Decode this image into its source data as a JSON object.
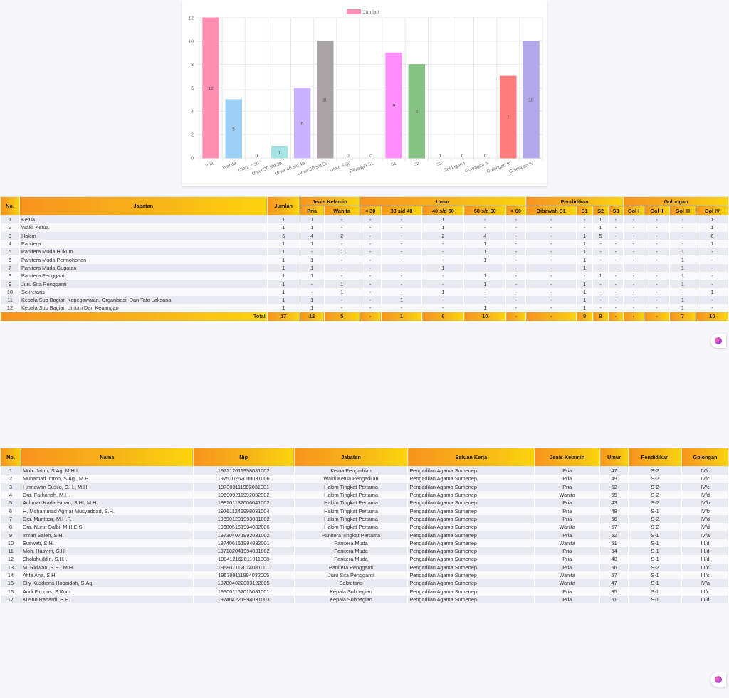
{
  "chart_data": {
    "type": "bar",
    "categories": [
      "Pria",
      "Wanita",
      "Umur < 30",
      "Umur 30 s/d 39",
      "Umur 40 s/d 49",
      "Umur 50 s/d 59",
      "Umur > 60",
      "Dibawah S1",
      "S1",
      "S2",
      "S3",
      "Golongan I",
      "Golongan II",
      "Golongan III",
      "Golongan IV"
    ],
    "series": [
      {
        "name": "Jumlah",
        "values": [
          12,
          5,
          0,
          1,
          6,
          10,
          0,
          0,
          9,
          8,
          0,
          0,
          0,
          7,
          10
        ]
      }
    ],
    "colors": [
      "#ff8fb0",
      "#9dd0f5",
      "#cccccc",
      "#a6e3e4",
      "#c9b2ff",
      "#aaa4a7",
      "#cccccc",
      "#cccccc",
      "#ff8dfa",
      "#86c283",
      "#cccccc",
      "#cccccc",
      "#cccccc",
      "#ff7a7a",
      "#b0a6e8"
    ],
    "ylim": [
      0,
      12
    ],
    "yticks": [
      0,
      2,
      4,
      6,
      8,
      10,
      12
    ],
    "legend": "top-center",
    "grid": true
  },
  "summary": {
    "headers": {
      "no": "No.",
      "jabatan": "Jabatan",
      "jumlah": "Jumlah",
      "jenis_kelamin": "Jenis Kelamin",
      "umur": "Umur",
      "pendidikan": "Pendidikan",
      "golongan": "Golongan",
      "sub": [
        "Pria",
        "Wanita",
        "< 30",
        "30 s/d 40",
        "40 s/d 50",
        "50 s/d 60",
        "> 60",
        "Dibawah S1",
        "S1",
        "S2",
        "S3",
        "Gol I",
        "Gol II",
        "Gol III",
        "Gol IV"
      ]
    },
    "rows": [
      [
        "1",
        "Ketua",
        "1",
        "1",
        "-",
        "-",
        "-",
        "1",
        "-",
        "-",
        "-",
        "-",
        "1",
        "-",
        "-",
        "-",
        "-",
        "1"
      ],
      [
        "2",
        "Wakil Ketua",
        "1",
        "1",
        "-",
        "-",
        "-",
        "1",
        "-",
        "-",
        "-",
        "-",
        "1",
        "-",
        "-",
        "-",
        "-",
        "1"
      ],
      [
        "3",
        "Hakim",
        "6",
        "4",
        "2",
        "-",
        "-",
        "2",
        "4",
        "-",
        "-",
        "1",
        "5",
        "-",
        "-",
        "-",
        "-",
        "6"
      ],
      [
        "4",
        "Panitera",
        "1",
        "1",
        "-",
        "-",
        "-",
        "-",
        "1",
        "-",
        "-",
        "1",
        "-",
        "-",
        "-",
        "-",
        "-",
        "1"
      ],
      [
        "5",
        "Panitera Muda Hukum",
        "1",
        "-",
        "1",
        "-",
        "-",
        "-",
        "1",
        "-",
        "-",
        "1",
        "-",
        "-",
        "-",
        "-",
        "1",
        "-"
      ],
      [
        "6",
        "Panitera Muda Permohonan",
        "1",
        "1",
        "-",
        "-",
        "-",
        "-",
        "1",
        "-",
        "-",
        "1",
        "-",
        "-",
        "-",
        "-",
        "1",
        "-"
      ],
      [
        "7",
        "Panitera Muda Gugatan",
        "1",
        "1",
        "-",
        "-",
        "-",
        "1",
        "-",
        "-",
        "-",
        "1",
        "-",
        "-",
        "-",
        "-",
        "1",
        "-"
      ],
      [
        "8",
        "Panitera Pengganti",
        "1",
        "1",
        "-",
        "-",
        "-",
        "-",
        "1",
        "-",
        "-",
        "-",
        "1",
        "-",
        "-",
        "-",
        "1",
        "-"
      ],
      [
        "9",
        "Juru Sita Pengganti",
        "1",
        "-",
        "1",
        "-",
        "-",
        "-",
        "1",
        "-",
        "-",
        "1",
        "-",
        "-",
        "-",
        "-",
        "1",
        "-"
      ],
      [
        "10",
        "Sekretaris",
        "1",
        "-",
        "1",
        "-",
        "-",
        "1",
        "-",
        "-",
        "-",
        "1",
        "-",
        "-",
        "-",
        "-",
        "-",
        "1"
      ],
      [
        "11",
        "Kepala Sub Bagian Kepegawaian, Organisasi, Dan Tata Laksana",
        "1",
        "1",
        "-",
        "-",
        "1",
        "-",
        "-",
        "-",
        "-",
        "1",
        "-",
        "-",
        "-",
        "-",
        "1",
        "-"
      ],
      [
        "12",
        "Kepala Sub Bagian Umum Dan Keuangan",
        "1",
        "1",
        "-",
        "-",
        "-",
        "-",
        "1",
        "-",
        "-",
        "1",
        "-",
        "-",
        "-",
        "-",
        "1",
        "-"
      ]
    ],
    "total": [
      "Total",
      "17",
      "12",
      "5",
      "-",
      "1",
      "6",
      "10",
      "-",
      "-",
      "9",
      "8",
      "-",
      "-",
      "-",
      "7",
      "10"
    ]
  },
  "employees": {
    "headers": [
      "No.",
      "Nama",
      "Nip",
      "Jabatan",
      "Satuan Kerja",
      "Jenis Kelamin",
      "Umur",
      "Pendidikan",
      "Golongan"
    ],
    "rows": [
      [
        "1",
        "Moh. Jatim, S.Ag, M.H.I.",
        "197712011998031002",
        "Ketua Pengadilan",
        "Pengadilan Agama Sumenep",
        "Pria",
        "47",
        "S-2",
        "IV/c"
      ],
      [
        "2",
        "Muhamad Imron, S.Ag., M.H.",
        "197510262000031006",
        "Wakil Ketua Pengadilan",
        "Pengadilan Agama Sumenep",
        "Pria",
        "49",
        "S-2",
        "IV/c"
      ],
      [
        "3",
        "Hirmawan Susilo, S.H., M.H.",
        "197303111992031001",
        "Hakim Tingkat Pertama",
        "Pengadilan Agama Sumenep",
        "Pria",
        "52",
        "S-2",
        "IV/c"
      ],
      [
        "4",
        "Dra. Farhanah, M.H.",
        "196909211992032002",
        "Hakim Tingkat Pertama",
        "Pengadilan Agama Sumenep",
        "Wanita",
        "55",
        "S-2",
        "IV/d"
      ],
      [
        "5",
        "Achmad Kadarisman, S.HI, M.H.",
        "198201132006041002",
        "Hakim Tingkat Pertama",
        "Pengadilan Agama Sumenep",
        "Pria",
        "43",
        "S-2",
        "IV/b"
      ],
      [
        "6",
        "H. Mohammad Aghfar Musyaddad, S.H.",
        "197611241998031004",
        "Hakim Tingkat Pertama",
        "Pengadilan Agama Sumenep",
        "Pria",
        "48",
        "S-1",
        "IV/b"
      ],
      [
        "7",
        "Drs. Muntasir, M.H.P.",
        "196901291993031002",
        "Hakim Tingkat Pertama",
        "Pengadilan Agama Sumenep",
        "Pria",
        "56",
        "S-2",
        "IV/d"
      ],
      [
        "8",
        "Dra. Nurul Qalbi, M.H.E.S.",
        "196805151994032006",
        "Hakim Tingkat Pertama",
        "Pengadilan Agama Sumenep",
        "Wanita",
        "57",
        "S-2",
        "IV/d"
      ],
      [
        "9",
        "Imran Saleh, S.H.",
        "197304071992031002",
        "Panitera Tingkat Pertama",
        "Pengadilan Agama Sumenep",
        "Pria",
        "52",
        "S-1",
        "IV/a"
      ],
      [
        "10",
        "Suswati, S.H.",
        "197406161994032001",
        "Panitera Muda",
        "Pengadilan Agama Sumenep",
        "Wanita",
        "51",
        "S-1",
        "III/d"
      ],
      [
        "11",
        "Moh. Hasyim, S.H.",
        "197102041994031002",
        "Panitera Muda",
        "Pengadilan Agama Sumenep",
        "Pria",
        "54",
        "S-1",
        "III/d"
      ],
      [
        "12",
        "Sholahuddin, S.H.I.",
        "198412162011011008",
        "Panitera Muda",
        "Pengadilan Agama Sumenep",
        "Pria",
        "40",
        "S-1",
        "III/d"
      ],
      [
        "13",
        "M. Ridwan, S.H., M.H.",
        "196807112014081001",
        "Panitera Pengganti",
        "Pengadilan Agama Sumenep",
        "Pria",
        "56",
        "S-2",
        "III/c"
      ],
      [
        "14",
        "Afifa Aha, S.H",
        "196709111994032005",
        "Juru Sita Pengganti",
        "Pengadilan Agama Sumenep",
        "Wanita",
        "57",
        "S-1",
        "III/c"
      ],
      [
        "15",
        "Elly Kusdiana Hobaidah, S.Ag.",
        "197804022003122005",
        "Sekretaris",
        "Pengadilan Agama Sumenep",
        "Wanita",
        "47",
        "S-1",
        "IV/a"
      ],
      [
        "16",
        "Andi Firdous, S.Kom.",
        "199001162015031001",
        "Kepala Subbagian",
        "Pengadilan Agama Sumenep",
        "Pria",
        "35",
        "S-1",
        "III/c"
      ],
      [
        "17",
        "Kusno Rahardi, S.H.",
        "197404221994031003",
        "Kepala Subbagian",
        "Pengadilan Agama Sumenep",
        "Pria",
        "51",
        "S-1",
        "III/d"
      ]
    ]
  },
  "widget_icon": "assistant-bubble-icon"
}
